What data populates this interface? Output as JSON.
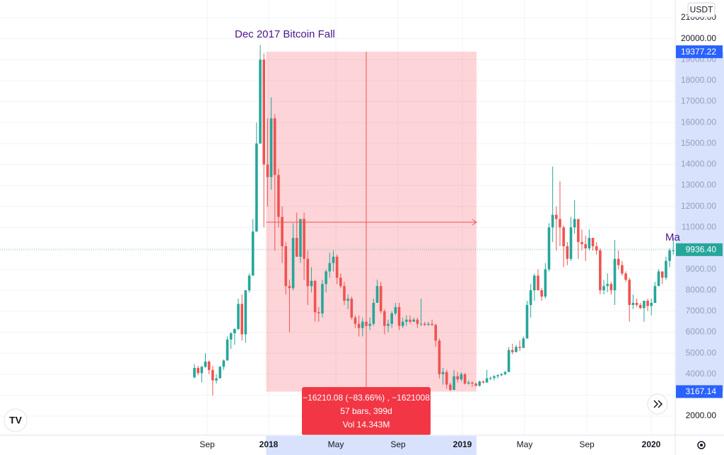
{
  "chart_data": {
    "type": "candlestick",
    "currency": "USDT",
    "ylim": [
      1089,
      21845
    ],
    "yticks": [
      {
        "value": 2000,
        "label": "2000.00"
      },
      {
        "value": 3000,
        "label": "3000.00"
      },
      {
        "value": 4000,
        "label": "4000.00"
      },
      {
        "value": 5000,
        "label": "5000.00"
      },
      {
        "value": 6000,
        "label": "6000.00"
      },
      {
        "value": 7000,
        "label": "7000.00"
      },
      {
        "value": 8000,
        "label": "8000.00"
      },
      {
        "value": 9000,
        "label": "9000.00"
      },
      {
        "value": 10000,
        "label": "10000.00"
      },
      {
        "value": 11000,
        "label": "11000.00"
      },
      {
        "value": 12000,
        "label": "12000.00"
      },
      {
        "value": 13000,
        "label": "13000.00"
      },
      {
        "value": 14000,
        "label": "14000.00"
      },
      {
        "value": 15000,
        "label": "15000.00"
      },
      {
        "value": 16000,
        "label": "16000.00"
      },
      {
        "value": 17000,
        "label": "17000.00"
      },
      {
        "value": 18000,
        "label": "18000.00"
      },
      {
        "value": 19000,
        "label": "19000.00"
      },
      {
        "value": 20000,
        "label": "20000.00"
      },
      {
        "value": 21000,
        "label": "21000.00"
      }
    ],
    "xlabels": [
      "Sep",
      "2018",
      "May",
      "Sep",
      "2019",
      "May",
      "Sep",
      "2020"
    ],
    "annotations": [
      "Dec 2017 Bitcoin Fall",
      "Ma"
    ],
    "last_price": {
      "value": 9936.4,
      "label": "9936.40"
    },
    "measure": {
      "high": {
        "value": 19377.22,
        "label": "19377.22"
      },
      "low": {
        "value": 3167.14,
        "label": "3167.14"
      },
      "lines": [
        "−16210.08 (−83.66%) , −1621008",
        "57 bars, 399d",
        "Vol 14.343M"
      ]
    },
    "colors": {
      "up": "#26a69a",
      "down": "#ef5350"
    },
    "candles": [
      [
        3850,
        4480,
        3800,
        4300
      ],
      [
        4300,
        4400,
        3950,
        4050
      ],
      [
        4050,
        4400,
        3600,
        4350
      ],
      [
        4350,
        5000,
        4300,
        4600
      ],
      [
        4600,
        4650,
        4000,
        4200
      ],
      [
        4200,
        4400,
        2980,
        3700
      ],
      [
        3700,
        4000,
        3550,
        3800
      ],
      [
        3800,
        4400,
        3800,
        4350
      ],
      [
        4350,
        4700,
        4200,
        4650
      ],
      [
        4650,
        5800,
        4650,
        5650
      ],
      [
        5650,
        6000,
        5200,
        5950
      ],
      [
        5950,
        6200,
        5400,
        6150
      ],
      [
        6150,
        7600,
        6100,
        7350
      ],
      [
        7350,
        7800,
        5600,
        5900
      ],
      [
        5900,
        8000,
        5500,
        8000
      ],
      [
        8000,
        8800,
        7900,
        8700
      ],
      [
        8700,
        11400,
        8700,
        10800
      ],
      [
        10800,
        16000,
        10800,
        15000
      ],
      [
        15000,
        19700,
        15000,
        19000
      ],
      [
        19000,
        19300,
        11000,
        14000
      ],
      [
        14000,
        16200,
        12000,
        13400
      ],
      [
        13400,
        17200,
        12800,
        16200
      ],
      [
        16200,
        16400,
        9900,
        13500
      ],
      [
        13500,
        13800,
        11000,
        11500
      ],
      [
        11500,
        12000,
        9300,
        10100
      ],
      [
        10100,
        10300,
        7800,
        8200
      ],
      [
        8200,
        8500,
        6000,
        8100
      ],
      [
        8100,
        11200,
        8000,
        10500
      ],
      [
        10500,
        11700,
        9600,
        9600
      ],
      [
        9600,
        11400,
        9300,
        11400
      ],
      [
        11400,
        11700,
        8500,
        9500
      ],
      [
        9500,
        9900,
        7300,
        8200
      ],
      [
        8200,
        9100,
        7900,
        8450
      ],
      [
        8450,
        8500,
        6500,
        6950
      ],
      [
        6950,
        7200,
        6500,
        6900
      ],
      [
        6900,
        8500,
        6700,
        8300
      ],
      [
        8300,
        9000,
        7900,
        8900
      ],
      [
        8900,
        9800,
        8600,
        9300
      ],
      [
        9300,
        9900,
        8900,
        9600
      ],
      [
        9600,
        9700,
        8300,
        8600
      ],
      [
        8600,
        8800,
        8100,
        8200
      ],
      [
        8200,
        8400,
        7300,
        7500
      ],
      [
        7500,
        7800,
        7100,
        7600
      ],
      [
        7600,
        7700,
        6600,
        6700
      ],
      [
        6700,
        6800,
        6200,
        6400
      ],
      [
        6400,
        6800,
        5800,
        6200
      ],
      [
        6200,
        6700,
        5800,
        6500
      ],
      [
        6500,
        6800,
        6200,
        6300
      ],
      [
        6300,
        6700,
        6100,
        6400
      ],
      [
        6400,
        7600,
        6300,
        7400
      ],
      [
        7400,
        8500,
        7400,
        8200
      ],
      [
        8200,
        8400,
        6900,
        7000
      ],
      [
        7000,
        7100,
        5900,
        6300
      ],
      [
        6300,
        6600,
        6000,
        6400
      ],
      [
        6400,
        7000,
        6200,
        6900
      ],
      [
        6900,
        7400,
        6800,
        7200
      ],
      [
        7200,
        7400,
        6100,
        6300
      ],
      [
        6300,
        6700,
        6200,
        6500
      ],
      [
        6500,
        6800,
        6300,
        6600
      ],
      [
        6600,
        6800,
        6400,
        6500
      ],
      [
        6500,
        6700,
        6500,
        6600
      ],
      [
        6600,
        6700,
        6200,
        6400
      ],
      [
        6400,
        7600,
        6300,
        6400
      ],
      [
        6400,
        6500,
        6300,
        6350
      ],
      [
        6350,
        6500,
        6300,
        6400
      ],
      [
        6400,
        6600,
        6300,
        6350
      ],
      [
        6350,
        6400,
        5300,
        5600
      ],
      [
        5600,
        5700,
        3800,
        4000
      ],
      [
        4000,
        4300,
        3500,
        4100
      ],
      [
        4100,
        4200,
        3300,
        3500
      ],
      [
        3500,
        3600,
        3200,
        3250
      ],
      [
        3250,
        4200,
        3250,
        3900
      ],
      [
        3900,
        4100,
        3600,
        3750
      ],
      [
        3750,
        4100,
        3650,
        4000
      ],
      [
        4000,
        4050,
        3500,
        3550
      ],
      [
        3550,
        3700,
        3500,
        3600
      ],
      [
        3600,
        3650,
        3400,
        3550
      ],
      [
        3550,
        3600,
        3400,
        3450
      ],
      [
        3450,
        3700,
        3400,
        3650
      ],
      [
        3650,
        3700,
        3550,
        3600
      ],
      [
        3600,
        4200,
        3600,
        3800
      ],
      [
        3800,
        3900,
        3700,
        3820
      ],
      [
        3820,
        3950,
        3700,
        3900
      ],
      [
        3900,
        4000,
        3800,
        3950
      ],
      [
        3950,
        4050,
        3900,
        4000
      ],
      [
        4000,
        4150,
        3950,
        4100
      ],
      [
        4100,
        5300,
        4100,
        5150
      ],
      [
        5150,
        5450,
        4950,
        5050
      ],
      [
        5050,
        5400,
        5050,
        5300
      ],
      [
        5300,
        5600,
        5100,
        5250
      ],
      [
        5250,
        5800,
        5250,
        5700
      ],
      [
        5700,
        7500,
        5700,
        7300
      ],
      [
        7300,
        8300,
        6700,
        8000
      ],
      [
        8000,
        8800,
        7500,
        8700
      ],
      [
        8700,
        9000,
        8000,
        8000
      ],
      [
        8000,
        8100,
        7500,
        7700
      ],
      [
        7700,
        9300,
        7600,
        9000
      ],
      [
        9000,
        11200,
        8900,
        11000
      ],
      [
        11000,
        13900,
        10300,
        11600
      ],
      [
        11600,
        12000,
        9900,
        11400
      ],
      [
        11400,
        13200,
        10100,
        11000
      ],
      [
        11000,
        11100,
        9100,
        10100
      ],
      [
        10100,
        10300,
        9200,
        9500
      ],
      [
        9500,
        11500,
        9400,
        11000
      ],
      [
        11000,
        12300,
        10700,
        11400
      ],
      [
        11400,
        11400,
        9500,
        10300
      ],
      [
        10300,
        10900,
        9900,
        10200
      ],
      [
        10200,
        10600,
        9400,
        10000
      ],
      [
        10000,
        10900,
        9900,
        10500
      ],
      [
        10500,
        10500,
        9900,
        10100
      ],
      [
        10100,
        10300,
        9700,
        9900
      ],
      [
        9900,
        10000,
        7800,
        8000
      ],
      [
        8000,
        8500,
        7800,
        8200
      ],
      [
        8200,
        8800,
        7900,
        8300
      ],
      [
        8300,
        8400,
        7800,
        8000
      ],
      [
        8000,
        10400,
        7300,
        9500
      ],
      [
        9500,
        9900,
        9000,
        9200
      ],
      [
        9200,
        9400,
        8700,
        8800
      ],
      [
        8800,
        8900,
        8400,
        8500
      ],
      [
        8500,
        8600,
        6500,
        7300
      ],
      [
        7300,
        7800,
        7100,
        7400
      ],
      [
        7400,
        7600,
        7200,
        7300
      ],
      [
        7300,
        7400,
        7100,
        7150
      ],
      [
        7150,
        7500,
        6500,
        7500
      ],
      [
        7500,
        7600,
        7000,
        7250
      ],
      [
        7250,
        7600,
        6800,
        7400
      ],
      [
        7400,
        8400,
        7400,
        8200
      ],
      [
        8200,
        9000,
        8200,
        8900
      ],
      [
        8900,
        8900,
        8300,
        8600
      ],
      [
        8600,
        9600,
        8500,
        9400
      ],
      [
        9400,
        10000,
        9100,
        9900
      ],
      [
        9900,
        10500,
        9700,
        9900
      ]
    ]
  }
}
